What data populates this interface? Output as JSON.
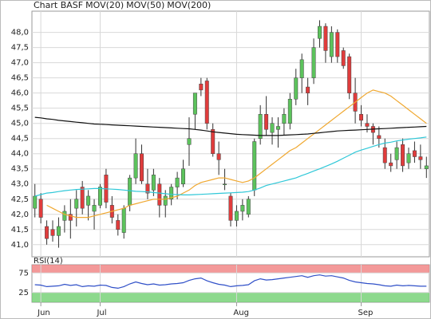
{
  "chart_data": [
    {
      "type": "candlestick",
      "title": "Chart BASF",
      "title_color": "#888888",
      "categories": [
        null,
        "Jun",
        null,
        null,
        null,
        null,
        null,
        null,
        null,
        null,
        null,
        "Jul",
        null,
        null,
        null,
        null,
        null,
        null,
        null,
        null,
        null,
        null,
        null,
        null,
        null,
        null,
        null,
        null,
        null,
        null,
        null,
        null,
        null,
        null,
        "Aug",
        null,
        null,
        null,
        null,
        null,
        null,
        null,
        null,
        null,
        null,
        null,
        null,
        null,
        null,
        null,
        null,
        null,
        null,
        null,
        null,
        "Sep",
        null,
        null,
        null,
        null,
        null,
        null,
        null,
        null,
        null,
        null,
        null
      ],
      "open": [
        42.2,
        42.5,
        41.6,
        41.5,
        41.3,
        41.8,
        42.0,
        42.2,
        42.9,
        42.3,
        42.1,
        42.3,
        43.3,
        42.3,
        41.8,
        41.4,
        42.3,
        43.2,
        44.0,
        43.0,
        42.8,
        43.0,
        42.3,
        42.5,
        42.9,
        43.0,
        44.3,
        45.3,
        46.3,
        46.4,
        44.8,
        44.0,
        43.0,
        42.6,
        41.8,
        42.1,
        42.0,
        42.8,
        44.5,
        45.3,
        44.7,
        44.8,
        45.0,
        45.0,
        45.8,
        46.5,
        46.2,
        46.5,
        47.8,
        48.2,
        47.2,
        48.0,
        47.4,
        47.2,
        46.0,
        45.3,
        45.0,
        44.9,
        44.6,
        44.2,
        43.7,
        43.8,
        44.3,
        43.7,
        44.1,
        43.9,
        43.5
      ],
      "high": [
        43.0,
        42.7,
        41.8,
        41.8,
        41.9,
        42.3,
        42.5,
        42.8,
        43.1,
        42.8,
        42.5,
        43.0,
        43.5,
        42.6,
        42.0,
        42.3,
        43.3,
        44.5,
        44.3,
        43.5,
        43.5,
        43.2,
        42.8,
        43.0,
        43.4,
        43.8,
        45.2,
        46.0,
        46.5,
        46.5,
        45.0,
        44.4,
        43.5,
        42.7,
        42.3,
        42.5,
        42.6,
        44.5,
        45.6,
        45.9,
        45.2,
        45.2,
        45.5,
        46.0,
        46.8,
        47.3,
        46.5,
        47.8,
        48.4,
        48.3,
        48.2,
        48.1,
        47.5,
        47.3,
        46.5,
        45.6,
        45.3,
        45.0,
        44.9,
        44.5,
        44.0,
        44.4,
        44.5,
        44.2,
        44.4,
        44.3,
        43.9
      ],
      "low": [
        41.9,
        41.7,
        41.0,
        41.1,
        40.9,
        41.4,
        41.2,
        41.6,
        42.0,
        41.8,
        41.5,
        42.2,
        42.2,
        41.7,
        41.3,
        41.2,
        42.1,
        43.0,
        43.0,
        42.5,
        42.6,
        41.9,
        41.9,
        42.3,
        42.5,
        42.9,
        43.6,
        44.8,
        45.9,
        44.8,
        43.9,
        43.3,
        42.8,
        41.6,
        41.6,
        41.8,
        41.9,
        42.6,
        44.3,
        44.6,
        44.3,
        44.2,
        44.6,
        44.8,
        45.6,
        46.0,
        45.6,
        46.3,
        47.5,
        47.0,
        47.0,
        47.0,
        46.8,
        45.8,
        45.0,
        44.9,
        44.7,
        44.3,
        44.2,
        43.5,
        43.4,
        43.5,
        43.4,
        43.5,
        43.7,
        43.5,
        43.2
      ],
      "close": [
        42.6,
        41.9,
        41.2,
        41.3,
        41.6,
        42.1,
        41.8,
        42.5,
        42.2,
        42.6,
        42.3,
        42.9,
        42.4,
        41.9,
        41.5,
        42.2,
        43.2,
        44.0,
        43.1,
        42.7,
        43.3,
        42.3,
        42.6,
        42.9,
        43.2,
        43.5,
        44.5,
        46.0,
        46.1,
        45.0,
        44.0,
        43.8,
        43.0,
        41.8,
        42.1,
        42.3,
        42.5,
        44.4,
        45.3,
        44.8,
        45.0,
        44.9,
        45.3,
        45.8,
        46.5,
        47.1,
        46.0,
        47.5,
        48.2,
        47.4,
        48.0,
        47.2,
        46.9,
        46.0,
        45.4,
        45.1,
        44.9,
        44.7,
        44.5,
        43.7,
        43.6,
        44.2,
        43.6,
        44.0,
        43.9,
        43.8,
        43.6
      ],
      "up_color": "#5cc35c",
      "down_color": "#e03c3c",
      "series": [
        {
          "name": "MOV(20)",
          "color": "#f0a830",
          "values": [
            null,
            null,
            42.3,
            42.2,
            42.1,
            42.0,
            41.95,
            41.9,
            41.9,
            41.9,
            41.95,
            42.0,
            42.05,
            42.1,
            42.15,
            42.2,
            42.3,
            42.35,
            42.4,
            42.45,
            42.5,
            42.5,
            42.5,
            42.55,
            42.6,
            42.7,
            42.8,
            42.95,
            43.05,
            43.1,
            43.15,
            43.2,
            43.2,
            43.15,
            43.1,
            43.05,
            43.1,
            43.2,
            43.35,
            43.5,
            43.65,
            43.8,
            43.95,
            44.1,
            44.2,
            44.35,
            44.5,
            44.65,
            44.8,
            44.95,
            45.1,
            45.25,
            45.4,
            45.55,
            45.7,
            45.85,
            46.0,
            46.1,
            46.05,
            46.0,
            45.9,
            45.75,
            45.6,
            45.45,
            45.3,
            45.15,
            45.0
          ]
        },
        {
          "name": "MOV(50)",
          "color": "#30c8d8",
          "values": [
            42.6,
            42.65,
            42.7,
            42.72,
            42.75,
            42.78,
            42.8,
            42.82,
            42.83,
            42.84,
            42.85,
            42.85,
            42.84,
            42.83,
            42.82,
            42.8,
            42.78,
            42.76,
            42.75,
            42.74,
            42.72,
            42.7,
            42.68,
            42.66,
            42.65,
            42.64,
            42.64,
            42.65,
            42.66,
            42.67,
            42.68,
            42.69,
            42.7,
            42.71,
            42.72,
            42.73,
            42.75,
            42.8,
            42.87,
            42.95,
            43.0,
            43.05,
            43.1,
            43.15,
            43.2,
            43.28,
            43.35,
            43.43,
            43.5,
            43.58,
            43.66,
            43.75,
            43.85,
            43.95,
            44.05,
            44.12,
            44.18,
            44.24,
            44.3,
            44.35,
            44.38,
            44.42,
            44.45,
            44.48,
            44.5,
            44.52,
            44.55
          ]
        },
        {
          "name": "MOV(200)",
          "color": "#111111",
          "values": [
            45.2,
            45.18,
            45.15,
            45.13,
            45.1,
            45.08,
            45.06,
            45.04,
            45.02,
            45.0,
            44.98,
            44.97,
            44.96,
            44.95,
            44.94,
            44.93,
            44.92,
            44.91,
            44.9,
            44.89,
            44.88,
            44.87,
            44.86,
            44.85,
            44.84,
            44.83,
            44.82,
            44.8,
            44.78,
            44.75,
            44.72,
            44.7,
            44.68,
            44.66,
            44.64,
            44.63,
            44.62,
            44.61,
            44.6,
            44.6,
            44.6,
            44.6,
            44.61,
            44.62,
            44.63,
            44.64,
            44.65,
            44.67,
            44.69,
            44.71,
            44.73,
            44.75,
            44.76,
            44.77,
            44.78,
            44.79,
            44.8,
            44.81,
            44.82,
            44.83,
            44.84,
            44.85,
            44.86,
            44.87,
            44.88,
            44.89,
            44.9
          ]
        }
      ],
      "ylim": [
        40.6,
        48.7
      ],
      "yticks": [
        {
          "value": 41,
          "label": "41,0"
        },
        {
          "value": 41.5,
          "label": "41,5"
        },
        {
          "value": 42,
          "label": "42,0"
        },
        {
          "value": 42.5,
          "label": "42,5"
        },
        {
          "value": 43,
          "label": "43,0"
        },
        {
          "value": 43.5,
          "label": "43,5"
        },
        {
          "value": 44,
          "label": "44,0"
        },
        {
          "value": 44.5,
          "label": "44,5"
        },
        {
          "value": 45,
          "label": "45,0"
        },
        {
          "value": 45.5,
          "label": "45,5"
        },
        {
          "value": 46,
          "label": "46,0"
        },
        {
          "value": 46.5,
          "label": "46,5"
        },
        {
          "value": 47,
          "label": "47,0"
        },
        {
          "value": 47.5,
          "label": "47,5"
        },
        {
          "value": 48,
          "label": "48,0"
        }
      ],
      "grid": true
    },
    {
      "type": "line",
      "title": "RSI(14)",
      "color": "#3050c8",
      "values": [
        45,
        44,
        40,
        41,
        42,
        46,
        43,
        45,
        40,
        42,
        41,
        44,
        43,
        38,
        36,
        40,
        47,
        52,
        48,
        45,
        47,
        44,
        45,
        47,
        48,
        50,
        56,
        60,
        62,
        55,
        50,
        46,
        44,
        40,
        42,
        43,
        45,
        55,
        60,
        57,
        58,
        60,
        62,
        64,
        66,
        68,
        64,
        68,
        70,
        67,
        68,
        65,
        62,
        56,
        52,
        50,
        48,
        47,
        45,
        42,
        41,
        44,
        42,
        43,
        42,
        41,
        41
      ],
      "ylim": [
        0,
        96
      ],
      "yticks": [
        25,
        75
      ],
      "upper_band_color": "#f08080",
      "lower_band_color": "#70d070",
      "grid": true
    }
  ]
}
